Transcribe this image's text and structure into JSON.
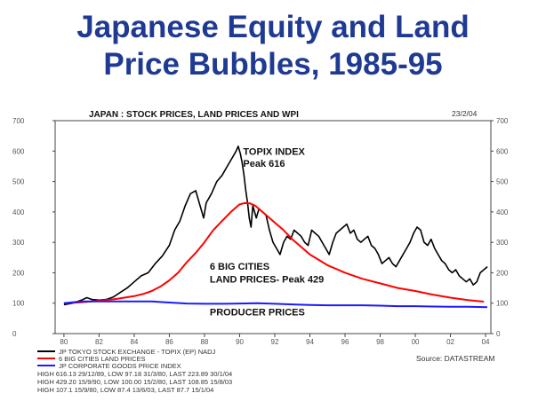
{
  "slide": {
    "title_line1": "Japanese Equity and Land",
    "title_line2": "Price Bubbles, 1985-95"
  },
  "chart_data": {
    "type": "line",
    "title": "JAPAN : STOCK PRICES, LAND PRICES AND WPI",
    "date": "23/2/04",
    "source": "Source: DATASTREAM",
    "xlim": [
      1979.5,
      2004.3
    ],
    "ylim": [
      0,
      700
    ],
    "yticks": [
      0,
      100,
      200,
      300,
      400,
      500,
      600,
      700
    ],
    "xtick_values": [
      1980,
      1982,
      1984,
      1986,
      1988,
      1990,
      1992,
      1994,
      1996,
      1998,
      2000,
      2002,
      2004
    ],
    "xtick_labels": [
      "80",
      "82",
      "84",
      "86",
      "88",
      "90",
      "92",
      "94",
      "96",
      "98",
      "00",
      "02",
      "04"
    ],
    "grid": false,
    "series": [
      {
        "name": "JP TOKYO STOCK EXCHANGE - TOPIX (EP) NADJ",
        "color": "#000000",
        "x": [
          1980.0,
          1980.5,
          1981.0,
          1981.3,
          1981.6,
          1982.0,
          1982.4,
          1982.8,
          1983.2,
          1983.6,
          1984.0,
          1984.4,
          1984.8,
          1985.2,
          1985.6,
          1986.0,
          1986.3,
          1986.6,
          1986.9,
          1987.2,
          1987.5,
          1987.8,
          1987.95,
          1988.1,
          1988.4,
          1988.7,
          1989.0,
          1989.3,
          1989.6,
          1989.8,
          1989.92,
          1990.05,
          1990.15,
          1990.25,
          1990.35,
          1990.45,
          1990.55,
          1990.65,
          1990.75,
          1990.85,
          1990.95,
          1991.1,
          1991.3,
          1991.5,
          1991.7,
          1991.9,
          1992.1,
          1992.3,
          1992.5,
          1992.7,
          1992.9,
          1993.1,
          1993.3,
          1993.5,
          1993.7,
          1993.9,
          1994.1,
          1994.3,
          1994.5,
          1994.7,
          1994.9,
          1995.1,
          1995.3,
          1995.5,
          1995.7,
          1995.9,
          1996.1,
          1996.3,
          1996.5,
          1996.7,
          1996.9,
          1997.1,
          1997.3,
          1997.5,
          1997.7,
          1997.9,
          1998.1,
          1998.3,
          1998.5,
          1998.7,
          1998.9,
          1999.1,
          1999.3,
          1999.5,
          1999.7,
          1999.9,
          2000.1,
          2000.3,
          2000.5,
          2000.7,
          2000.9,
          2001.1,
          2001.3,
          2001.5,
          2001.7,
          2001.9,
          2002.1,
          2002.3,
          2002.5,
          2002.7,
          2002.9,
          2003.1,
          2003.3,
          2003.5,
          2003.7,
          2003.9,
          2004.1
        ],
        "values": [
          95,
          100,
          110,
          118,
          112,
          110,
          112,
          120,
          135,
          150,
          170,
          190,
          200,
          230,
          255,
          290,
          340,
          370,
          420,
          460,
          470,
          410,
          380,
          430,
          460,
          500,
          520,
          550,
          580,
          600,
          616,
          590,
          560,
          520,
          470,
          430,
          380,
          350,
          420,
          400,
          380,
          410,
          400,
          390,
          340,
          300,
          280,
          260,
          300,
          320,
          310,
          340,
          330,
          320,
          300,
          290,
          340,
          330,
          320,
          300,
          280,
          260,
          300,
          330,
          340,
          350,
          360,
          330,
          340,
          310,
          300,
          310,
          320,
          290,
          280,
          260,
          230,
          240,
          250,
          230,
          220,
          240,
          260,
          280,
          300,
          330,
          350,
          340,
          300,
          290,
          310,
          280,
          260,
          240,
          230,
          210,
          200,
          210,
          190,
          180,
          170,
          180,
          160,
          170,
          200,
          210,
          220
        ]
      },
      {
        "name": "6 BIG CITIES LAND PRICES",
        "color": "#ff0000",
        "x": [
          1980.0,
          1981.0,
          1982.0,
          1983.0,
          1984.0,
          1984.5,
          1985.0,
          1985.5,
          1986.0,
          1986.5,
          1987.0,
          1987.5,
          1988.0,
          1988.5,
          1989.0,
          1989.5,
          1990.0,
          1990.3,
          1990.6,
          1990.9,
          1991.2,
          1991.6,
          1992.0,
          1992.5,
          1993.0,
          1993.5,
          1994.0,
          1995.0,
          1996.0,
          1997.0,
          1998.0,
          1999.0,
          2000.0,
          2001.0,
          2002.0,
          2003.0,
          2003.9
        ],
        "values": [
          100,
          103,
          108,
          114,
          123,
          130,
          140,
          155,
          175,
          200,
          235,
          265,
          300,
          340,
          370,
          400,
          425,
          429,
          428,
          420,
          405,
          385,
          365,
          340,
          310,
          285,
          260,
          225,
          200,
          180,
          165,
          150,
          140,
          128,
          118,
          110,
          105
        ]
      },
      {
        "name": "JP CORPORATE GOODS PRICE INDEX",
        "color": "#1a1aff",
        "x": [
          1980.0,
          1981.0,
          1982.0,
          1983.0,
          1984.0,
          1985.0,
          1986.0,
          1987.0,
          1988.0,
          1989.0,
          1990.0,
          1991.0,
          1992.0,
          1993.0,
          1994.0,
          1995.0,
          1996.0,
          1997.0,
          1998.0,
          1999.0,
          2000.0,
          2001.0,
          2002.0,
          2003.0,
          2004.1
        ],
        "values": [
          100,
          106,
          106,
          106,
          106,
          106,
          102,
          99,
          98,
          98,
          99,
          100,
          98,
          96,
          94,
          93,
          93,
          93,
          92,
          90,
          90,
          89,
          88,
          88,
          87
        ]
      }
    ],
    "annotations": [
      {
        "text": "TOPIX INDEX",
        "x": 1990.2,
        "y": 588
      },
      {
        "text": "Peak 616",
        "x": 1990.2,
        "y": 548
      },
      {
        "text": "6 BIG CITIES",
        "x": 1988.3,
        "y": 210
      },
      {
        "text": "LAND PRICES- Peak 429",
        "x": 1988.3,
        "y": 168
      },
      {
        "text": "PRODUCER PRICES",
        "x": 1988.3,
        "y": 60
      }
    ],
    "legend": {
      "placement": "bottom-left",
      "stats": [
        "HIGH 616.13 29/12/89, LOW  97.18 31/3/80, LAST 223.89 30/1/04",
        "HIGH 429.20 15/9/90, LOW 100.00 15/2/80, LAST 108.85 15/8/03",
        "HIGH  107.1 15/9/80, LOW   87.4 13/6/03, LAST   87.7 15/1/04"
      ]
    }
  }
}
